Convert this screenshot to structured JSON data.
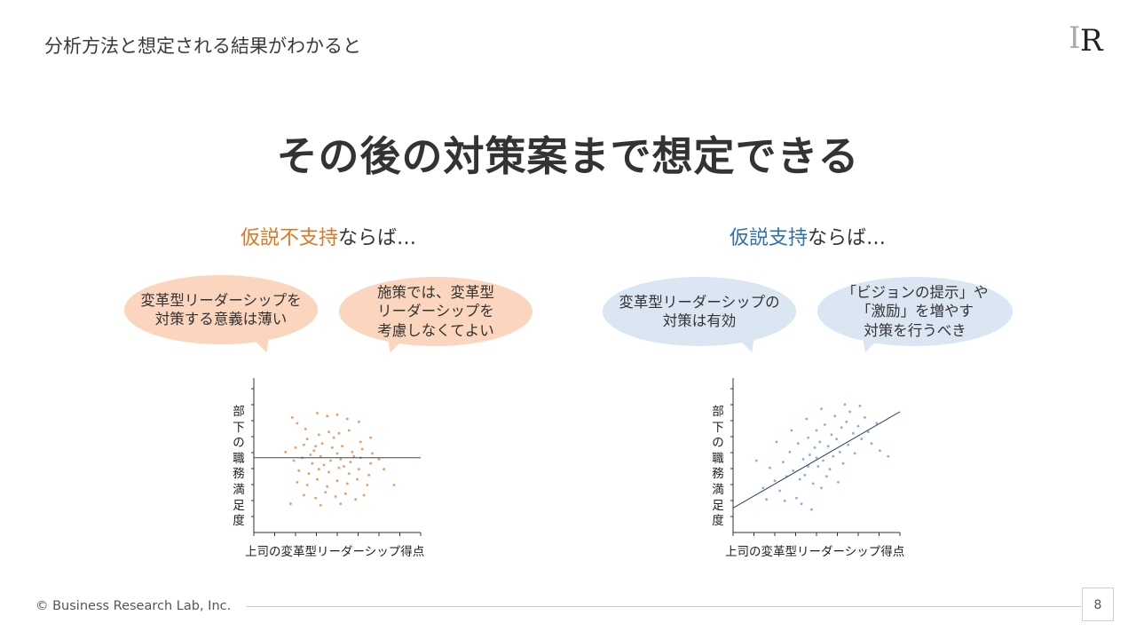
{
  "header": {
    "title": "分析方法と想定される結果がわかると"
  },
  "logo": {
    "letters": [
      "I",
      "R"
    ]
  },
  "main_title": "その後の対策案まで想定できる",
  "cases": [
    {
      "keyword": "仮説不支持",
      "suffix": "ならば…",
      "bubbles": [
        "変革型リーダーシップを\n対策する意義は薄い",
        "施策では、変革型\nリーダーシップを\n考慮しなくてよい"
      ],
      "chart_type": "no-correlation"
    },
    {
      "keyword": "仮説支持",
      "suffix": "ならば…",
      "bubbles": [
        "変革型リーダーシップの\n対策は有効",
        "「ビジョンの提示」や\n「激励」を増やす\n対策を行うべき"
      ],
      "chart_type": "positive-correlation"
    }
  ],
  "colors": {
    "orange_accent": "#e0761f",
    "blue_accent": "#2e6fb3",
    "orange_bubble": "#fbd5bd",
    "blue_bubble": "#dbe6f3",
    "orange_point": "#ee9a5c",
    "blue_point": "#86afe0"
  },
  "chart_data": [
    {
      "type": "scatter",
      "title": "",
      "xlabel": "上司の変革型リーダーシップ得点",
      "ylabel": "部下の職務満足度",
      "ylabel_chars": [
        "部",
        "下",
        "の",
        "職",
        "務",
        "満",
        "足",
        "度"
      ],
      "xlim": [
        0,
        10
      ],
      "ylim": [
        0,
        10
      ],
      "grid": false,
      "series": [
        {
          "color": "#ee9a5c",
          "points": [
            [
              2.3,
              8.0
            ],
            [
              2.6,
              7.6
            ],
            [
              3.1,
              7.2
            ],
            [
              3.8,
              8.3
            ],
            [
              4.4,
              8.1
            ],
            [
              5.0,
              8.2
            ],
            [
              5.6,
              7.9
            ],
            [
              6.3,
              7.7
            ],
            [
              3.2,
              6.5
            ],
            [
              3.9,
              6.8
            ],
            [
              4.5,
              7.0
            ],
            [
              5.1,
              6.9
            ],
            [
              5.7,
              7.1
            ],
            [
              6.4,
              6.3
            ],
            [
              7.0,
              6.6
            ],
            [
              2.5,
              5.9
            ],
            [
              3.0,
              6.1
            ],
            [
              3.6,
              5.7
            ],
            [
              4.1,
              6.2
            ],
            [
              4.7,
              5.9
            ],
            [
              5.3,
              6.0
            ],
            [
              5.9,
              5.6
            ],
            [
              6.5,
              5.8
            ],
            [
              7.1,
              5.5
            ],
            [
              2.4,
              5.0
            ],
            [
              2.9,
              5.2
            ],
            [
              3.5,
              4.8
            ],
            [
              4.0,
              5.3
            ],
            [
              4.6,
              5.0
            ],
            [
              5.2,
              5.1
            ],
            [
              5.8,
              4.9
            ],
            [
              6.4,
              5.2
            ],
            [
              7.0,
              4.8
            ],
            [
              7.5,
              5.1
            ],
            [
              2.7,
              4.3
            ],
            [
              3.3,
              4.1
            ],
            [
              3.9,
              4.4
            ],
            [
              4.5,
              4.2
            ],
            [
              5.1,
              4.5
            ],
            [
              5.7,
              4.1
            ],
            [
              6.3,
              4.4
            ],
            [
              6.9,
              4.0
            ],
            [
              2.6,
              3.5
            ],
            [
              3.2,
              3.3
            ],
            [
              3.8,
              3.7
            ],
            [
              4.4,
              3.2
            ],
            [
              5.0,
              3.6
            ],
            [
              5.6,
              3.4
            ],
            [
              6.2,
              3.7
            ],
            [
              6.8,
              3.3
            ],
            [
              3.0,
              2.6
            ],
            [
              3.7,
              2.4
            ],
            [
              4.3,
              2.8
            ],
            [
              4.9,
              2.5
            ],
            [
              5.5,
              2.7
            ],
            [
              6.1,
              2.3
            ],
            [
              2.2,
              2.0
            ],
            [
              4.0,
              1.9
            ],
            [
              5.2,
              2.0
            ],
            [
              6.6,
              2.6
            ],
            [
              1.9,
              5.6
            ],
            [
              7.8,
              4.4
            ],
            [
              8.4,
              3.3
            ],
            [
              4.8,
              6.6
            ],
            [
              4.2,
              4.7
            ],
            [
              5.4,
              4.6
            ],
            [
              3.4,
              5.4
            ],
            [
              6.0,
              5.3
            ],
            [
              3.7,
              6.0
            ],
            [
              5.0,
              5.5
            ]
          ]
        }
      ],
      "fit_line": {
        "x": [
          0,
          10
        ],
        "y": [
          5.2,
          5.2
        ]
      }
    },
    {
      "type": "scatter",
      "title": "",
      "xlabel": "上司の変革型リーダーシップ得点",
      "ylabel": "部下の職務満足度",
      "ylabel_chars": [
        "部",
        "下",
        "の",
        "職",
        "務",
        "満",
        "足",
        "度"
      ],
      "xlim": [
        0,
        10
      ],
      "ylim": [
        0,
        10
      ],
      "grid": false,
      "series": [
        {
          "color": "#86afe0",
          "points": [
            [
              1.8,
              3.1
            ],
            [
              2.2,
              4.5
            ],
            [
              2.5,
              3.6
            ],
            [
              2.8,
              2.9
            ],
            [
              3.0,
              4.9
            ],
            [
              3.2,
              3.9
            ],
            [
              3.4,
              5.6
            ],
            [
              3.6,
              4.3
            ],
            [
              3.8,
              2.4
            ],
            [
              3.9,
              6.2
            ],
            [
              4.0,
              3.7
            ],
            [
              4.2,
              5.1
            ],
            [
              4.3,
              4.0
            ],
            [
              4.5,
              6.6
            ],
            [
              4.6,
              5.4
            ],
            [
              4.8,
              3.4
            ],
            [
              4.9,
              5.9
            ],
            [
              5.0,
              7.1
            ],
            [
              5.1,
              4.6
            ],
            [
              5.2,
              6.3
            ],
            [
              5.4,
              5.0
            ],
            [
              5.5,
              7.5
            ],
            [
              5.6,
              3.9
            ],
            [
              5.7,
              6.0
            ],
            [
              5.9,
              6.8
            ],
            [
              6.0,
              5.3
            ],
            [
              6.1,
              8.1
            ],
            [
              6.2,
              6.5
            ],
            [
              6.4,
              5.6
            ],
            [
              6.5,
              7.3
            ],
            [
              6.6,
              4.8
            ],
            [
              6.8,
              7.7
            ],
            [
              6.9,
              6.1
            ],
            [
              7.0,
              8.4
            ],
            [
              7.2,
              6.9
            ],
            [
              7.3,
              5.5
            ],
            [
              7.5,
              7.4
            ],
            [
              7.7,
              6.5
            ],
            [
              7.9,
              8.0
            ],
            [
              8.1,
              7.0
            ],
            [
              8.3,
              6.2
            ],
            [
              8.6,
              7.6
            ],
            [
              3.1,
              2.2
            ],
            [
              4.1,
              2.0
            ],
            [
              4.7,
              1.6
            ],
            [
              5.3,
              3.1
            ],
            [
              5.8,
              4.4
            ],
            [
              6.3,
              3.5
            ],
            [
              2.6,
              6.3
            ],
            [
              3.5,
              7.1
            ],
            [
              4.4,
              7.9
            ],
            [
              5.3,
              8.6
            ],
            [
              6.7,
              8.9
            ],
            [
              7.6,
              8.8
            ],
            [
              8.8,
              5.7
            ],
            [
              9.3,
              5.3
            ],
            [
              1.4,
              5.0
            ],
            [
              2.0,
              2.3
            ],
            [
              4.5,
              4.6
            ],
            [
              5.0,
              5.2
            ]
          ]
        }
      ],
      "fit_line": {
        "x": [
          0,
          10
        ],
        "y": [
          1.7,
          8.4
        ]
      }
    }
  ],
  "footer": {
    "copyright": "© Business Research Lab, Inc.",
    "page_number": "8"
  }
}
